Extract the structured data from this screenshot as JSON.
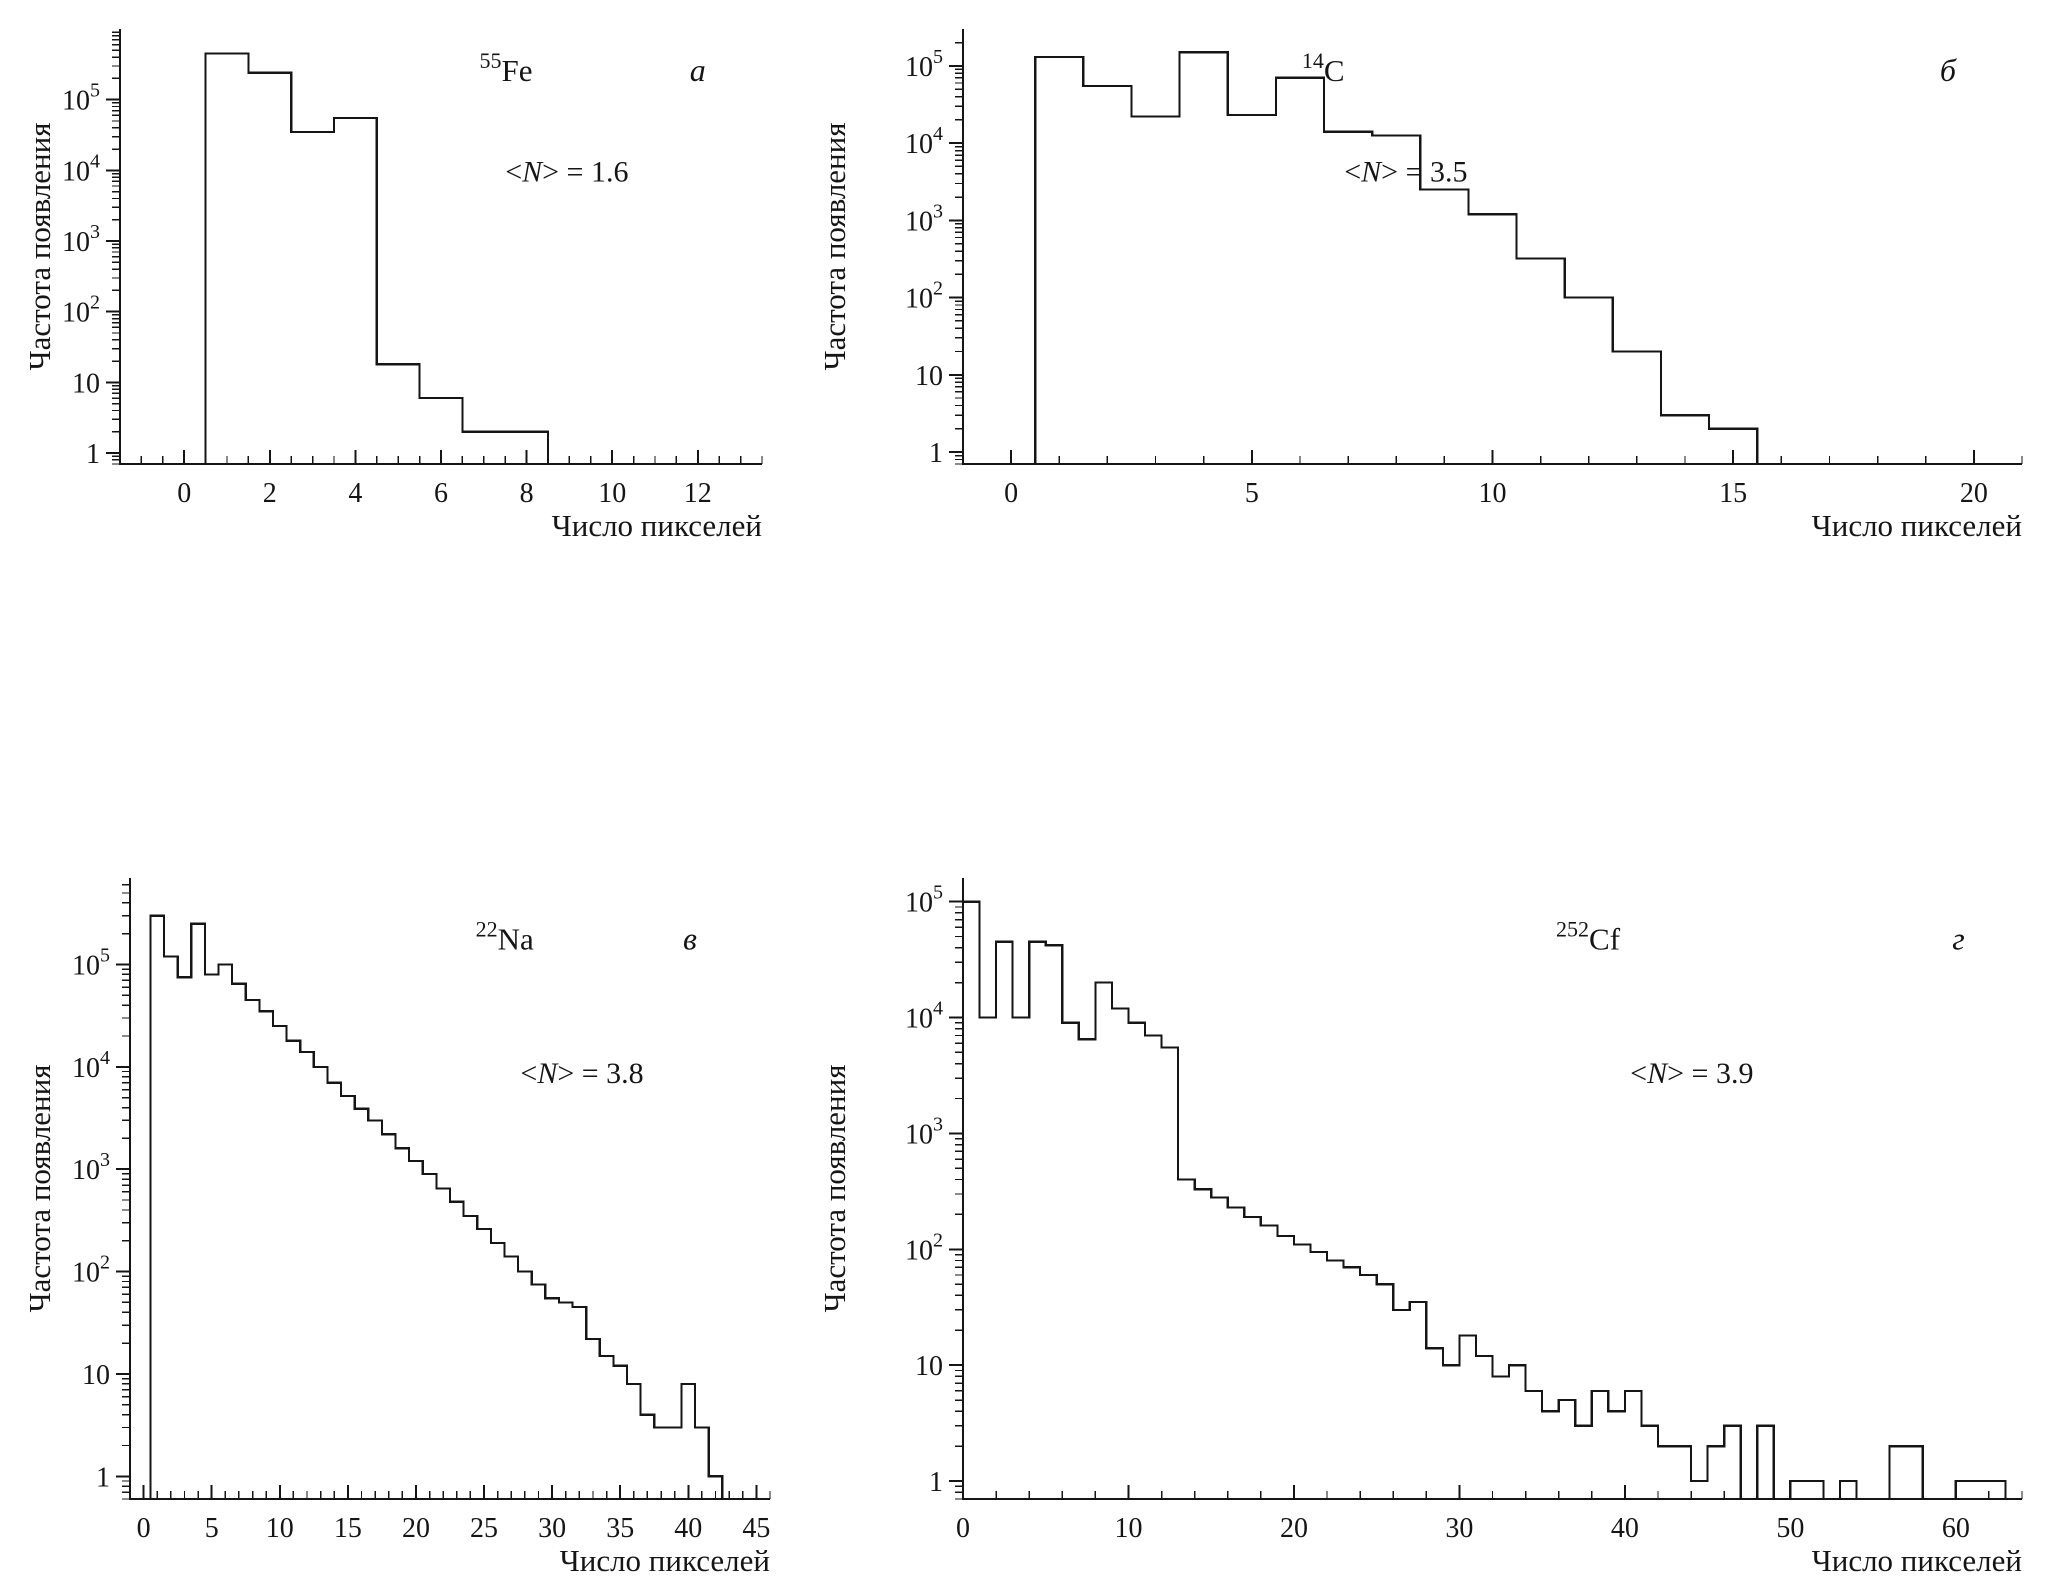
{
  "style": {
    "line_color": "#151515",
    "background": "#ffffff"
  },
  "chart_data": [
    {
      "type": "histogram-step",
      "panel_letter": "а",
      "isotope": {
        "mass": "55",
        "symbol": "Fe"
      },
      "mean_annotation": {
        "open": "<",
        "symbol": "N",
        "close": "> = ",
        "value": "1.6"
      },
      "xlabel": "Число пикселей",
      "ylabel": "Частота появления",
      "xlim": [
        -1.5,
        13.5
      ],
      "xticks": [
        0,
        2,
        4,
        6,
        8,
        10,
        12
      ],
      "x_minor_step": 0.5,
      "ylim": [
        0.7,
        1000000
      ],
      "yticks": [
        1,
        10,
        100,
        1000,
        10000,
        100000
      ],
      "y_scale": "log",
      "bin_start": 0.5,
      "bin_width": 1,
      "values": [
        450000,
        240000,
        35000,
        55000,
        18,
        6,
        2,
        2
      ]
    },
    {
      "type": "histogram-step",
      "panel_letter": "б",
      "isotope": {
        "mass": "14",
        "symbol": "C"
      },
      "mean_annotation": {
        "open": "<",
        "symbol": "N",
        "close": "> = ",
        "value": "3.5"
      },
      "xlabel": "Число пикселей",
      "ylabel": "Частота появления",
      "xlim": [
        -1,
        21
      ],
      "xticks": [
        0,
        5,
        10,
        15,
        20
      ],
      "x_minor_step": 1,
      "ylim": [
        0.7,
        300000
      ],
      "yticks": [
        1,
        10,
        100,
        1000,
        10000,
        100000
      ],
      "y_scale": "log",
      "bin_start": 0.5,
      "bin_width": 1,
      "values": [
        130000,
        55000,
        22000,
        150000,
        23000,
        70000,
        14000,
        12500,
        2500,
        1200,
        320,
        100,
        20,
        3,
        2
      ]
    },
    {
      "type": "histogram-step",
      "panel_letter": "в",
      "isotope": {
        "mass": "22",
        "symbol": "Na"
      },
      "mean_annotation": {
        "open": "<",
        "symbol": "N",
        "close": "> = ",
        "value": "3.8"
      },
      "xlabel": "Число пикселей",
      "ylabel": "Частота появления",
      "xlim": [
        -1,
        46
      ],
      "xticks": [
        0,
        5,
        10,
        15,
        20,
        25,
        30,
        35,
        40,
        45
      ],
      "x_minor_step": 1,
      "ylim": [
        0.6,
        700000
      ],
      "yticks": [
        1,
        10,
        100,
        1000,
        10000,
        100000
      ],
      "y_scale": "log",
      "bin_start": 0.5,
      "bin_width": 1,
      "values": [
        300000,
        120000,
        75000,
        250000,
        80000,
        100000,
        65000,
        45000,
        35000,
        25000,
        18000,
        14000,
        10000,
        7000,
        5200,
        3900,
        3000,
        2200,
        1600,
        1200,
        900,
        650,
        480,
        350,
        260,
        190,
        140,
        100,
        75,
        55,
        50,
        45,
        22,
        15,
        12,
        8,
        4,
        3,
        3,
        8,
        3,
        1
      ]
    },
    {
      "type": "histogram-step",
      "panel_letter": "г",
      "isotope": {
        "mass": "252",
        "symbol": "Cf"
      },
      "mean_annotation": {
        "open": "<",
        "symbol": "N",
        "close": "> = ",
        "value": "3.9"
      },
      "xlabel": "Число пикселей",
      "ylabel": "Частота появления",
      "xlim": [
        0,
        64
      ],
      "xticks": [
        0,
        10,
        20,
        30,
        40,
        50,
        60
      ],
      "x_minor_step": 2,
      "ylim": [
        0.7,
        160000
      ],
      "yticks": [
        1,
        10,
        100,
        1000,
        10000,
        100000
      ],
      "y_scale": "log",
      "bin_start": 0,
      "bin_width": 1,
      "values": [
        100000,
        10000,
        45000,
        10000,
        45000,
        42000,
        9000,
        6500,
        20000,
        12000,
        9000,
        7000,
        5500,
        400,
        330,
        280,
        230,
        190,
        160,
        130,
        110,
        95,
        80,
        70,
        60,
        50,
        30,
        35,
        14,
        10,
        18,
        12,
        8,
        10,
        6,
        4,
        5,
        3,
        6,
        4,
        6,
        3,
        2,
        2,
        1,
        2,
        3,
        0,
        3,
        0,
        1,
        1,
        0,
        1,
        0,
        0,
        2,
        2,
        0,
        0,
        1,
        1,
        1
      ]
    }
  ]
}
